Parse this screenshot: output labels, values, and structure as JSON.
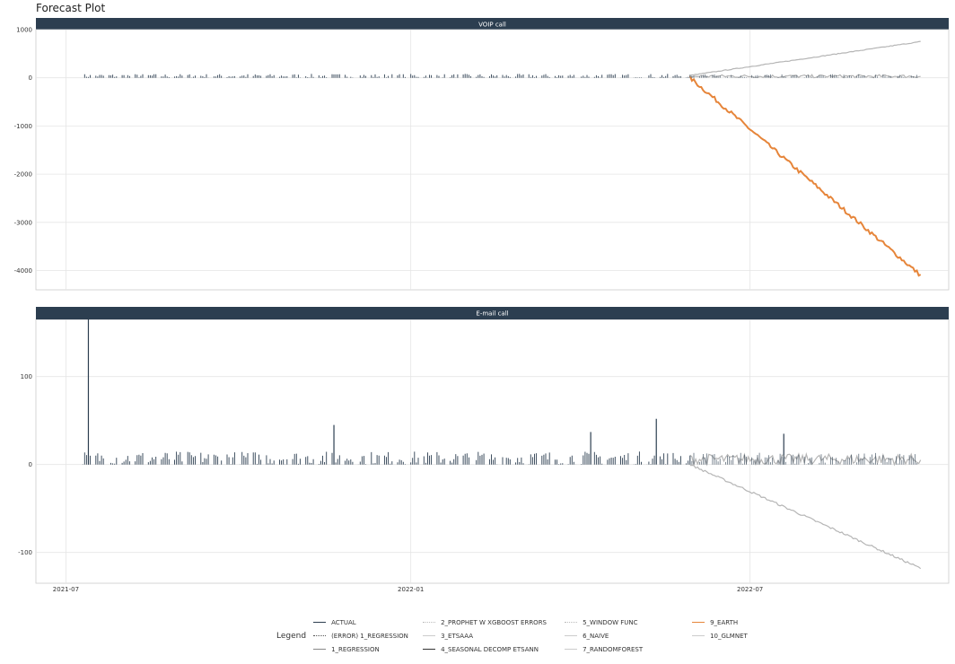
{
  "title": "Forecast Plot",
  "colors": {
    "strip_bg": "#2c3e50",
    "actual": "#2c3e50",
    "earth": "#e6853a",
    "forecast_gray": "#b5b5b5",
    "grid": "#e5e5e5"
  },
  "legend": {
    "title": "Legend",
    "items": [
      {
        "label": "ACTUAL",
        "color": "#2c3e50",
        "style": "solid"
      },
      {
        "label": "(ERROR) 1_REGRESSION",
        "color": "#555555",
        "style": "dotted"
      },
      {
        "label": "1_REGRESSION",
        "color": "#888888",
        "style": "solid"
      },
      {
        "label": "2_PROPHET W XGBOOST ERRORS",
        "color": "#bbbbbb",
        "style": "dotted"
      },
      {
        "label": "3_ETSAAA",
        "color": "#cccccc",
        "style": "solid"
      },
      {
        "label": "4_SEASONAL DECOMP ETSANN",
        "color": "#333333",
        "style": "solid"
      },
      {
        "label": "5_WINDOW FUNC",
        "color": "#bbbbbb",
        "style": "dotted"
      },
      {
        "label": "6_NAIVE",
        "color": "#cccccc",
        "style": "solid"
      },
      {
        "label": "7_RANDOMFOREST",
        "color": "#cccccc",
        "style": "solid"
      },
      {
        "label": "9_EARTH",
        "color": "#e6853a",
        "style": "solid"
      },
      {
        "label": "10_GLMNET",
        "color": "#cccccc",
        "style": "solid"
      }
    ]
  },
  "chart_data": [
    {
      "type": "line",
      "title": "VOIP call",
      "x_ticks": [
        "2021-07",
        "2022-01",
        "2022-07"
      ],
      "x_range": [
        "2021-06-15",
        "2022-10-15"
      ],
      "y_ticks": [
        1000,
        0,
        -1000,
        -2000,
        -3000,
        -4000
      ],
      "ylim": [
        -4400,
        1000
      ],
      "grid": true,
      "actual": {
        "start": "2021-07-09",
        "end": "2022-05-30",
        "level": 0,
        "spike_max": 80
      },
      "forecast_start": "2022-05-30",
      "forecast_end": "2022-09-30",
      "series": [
        {
          "name": "ACTUAL",
          "level": 0
        },
        {
          "name": "9_EARTH",
          "start_value": 0,
          "end_value": -4100
        },
        {
          "name": "2_PROPHET W XGBOOST ERRORS",
          "start_value": 50,
          "end_value": 750
        },
        {
          "name": "10_GLMNET",
          "start_value": 0,
          "end_value": 0
        }
      ]
    },
    {
      "type": "line",
      "title": "E-mail call",
      "x_ticks": [
        "2021-07",
        "2022-01",
        "2022-07"
      ],
      "x_range": [
        "2021-06-15",
        "2022-10-15"
      ],
      "y_ticks": [
        100,
        0,
        -100
      ],
      "ylim": [
        -135,
        165
      ],
      "grid": true,
      "actual": {
        "start": "2021-07-09",
        "end": "2022-05-30",
        "level": 0,
        "spike_max": 15
      },
      "spikes": [
        {
          "x": "2021-07-13",
          "y": 165
        },
        {
          "x": "2021-11-21",
          "y": 45
        },
        {
          "x": "2022-04-07",
          "y": 37
        },
        {
          "x": "2022-05-12",
          "y": 52
        },
        {
          "x": "2022-07-19",
          "y": 35
        }
      ],
      "forecast_start": "2022-05-30",
      "forecast_end": "2022-09-30",
      "series": [
        {
          "name": "ACTUAL",
          "level": 0
        },
        {
          "name": "2_PROPHET W XGBOOST ERRORS",
          "start_value": 0,
          "end_value": -118
        },
        {
          "name": "10_GLMNET",
          "start_value": 0,
          "end_value": 0
        }
      ]
    }
  ]
}
